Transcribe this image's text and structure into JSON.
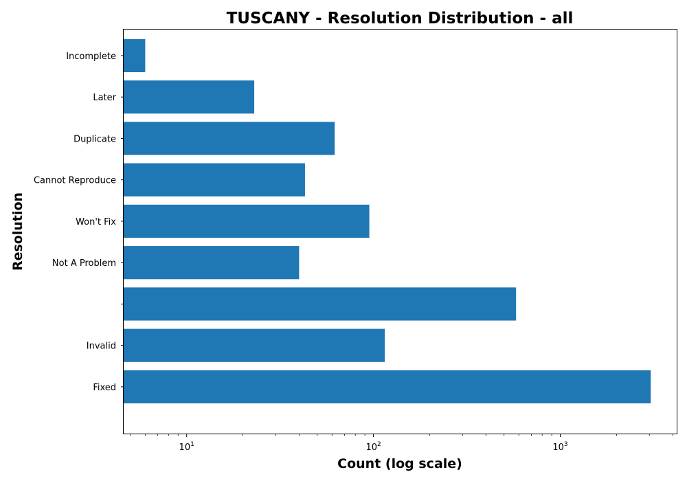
{
  "chart_data": {
    "type": "bar",
    "orientation": "horizontal",
    "title": "TUSCANY - Resolution Distribution - all",
    "xlabel": "Count (log scale)",
    "ylabel": "Resolution",
    "x_scale": "log",
    "xlim": [
      4.6,
      4200
    ],
    "x_ticks": [
      {
        "value": 10,
        "base": "10",
        "exp": "1"
      },
      {
        "value": 100,
        "base": "10",
        "exp": "2"
      },
      {
        "value": 1000,
        "base": "10",
        "exp": "3"
      }
    ],
    "categories": [
      "Fixed",
      "Invalid",
      "",
      "Not A Problem",
      "Won't Fix",
      "Cannot Reproduce",
      "Duplicate",
      "Later",
      "Incomplete"
    ],
    "values": [
      3050,
      115,
      580,
      40,
      95,
      43,
      62,
      23,
      6
    ],
    "bar_color": "#1f77b4",
    "grid": false,
    "legend": "none"
  }
}
